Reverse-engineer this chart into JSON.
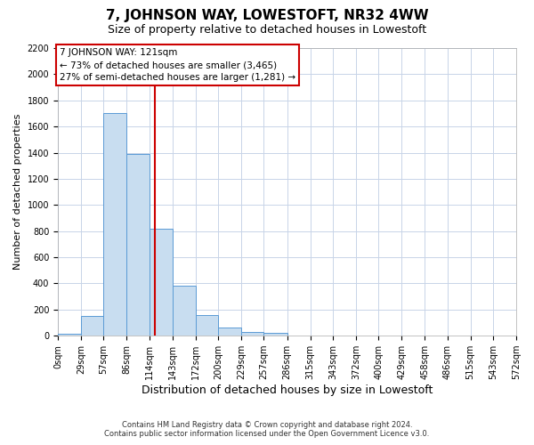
{
  "title": "7, JOHNSON WAY, LOWESTOFT, NR32 4WW",
  "subtitle": "Size of property relative to detached houses in Lowestoft",
  "xlabel": "Distribution of detached houses by size in Lowestoft",
  "ylabel": "Number of detached properties",
  "bin_edges": [
    0,
    29,
    57,
    86,
    114,
    143,
    172,
    200,
    229,
    257,
    286,
    315,
    343,
    372,
    400,
    429,
    458,
    486,
    515,
    543,
    572
  ],
  "bar_heights": [
    15,
    150,
    1700,
    1390,
    820,
    380,
    160,
    65,
    30,
    20,
    0,
    0,
    0,
    0,
    0,
    0,
    0,
    0,
    0,
    0
  ],
  "bar_color": "#c8ddf0",
  "bar_edgecolor": "#5b9bd5",
  "property_line_x": 121,
  "property_line_color": "#cc0000",
  "ylim": [
    0,
    2200
  ],
  "yticks": [
    0,
    200,
    400,
    600,
    800,
    1000,
    1200,
    1400,
    1600,
    1800,
    2000,
    2200
  ],
  "annotation_title": "7 JOHNSON WAY: 121sqm",
  "annotation_line1": "← 73% of detached houses are smaller (3,465)",
  "annotation_line2": "27% of semi-detached houses are larger (1,281) →",
  "footer_line1": "Contains HM Land Registry data © Crown copyright and database right 2024.",
  "footer_line2": "Contains public sector information licensed under the Open Government Licence v3.0.",
  "background_color": "#ffffff",
  "grid_color": "#c8d4e8",
  "title_fontsize": 11,
  "subtitle_fontsize": 9,
  "tick_fontsize": 7,
  "ylabel_fontsize": 8,
  "xlabel_fontsize": 9
}
